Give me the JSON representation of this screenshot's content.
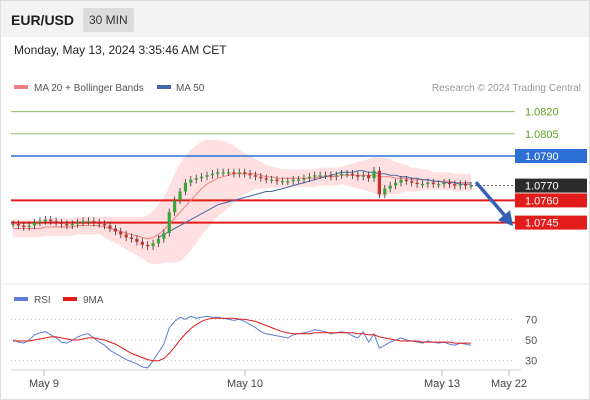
{
  "header": {
    "symbol": "EUR/USD",
    "timeframe": "30 MIN"
  },
  "timestamp": "Monday, May 13, 2024 3:35:46 AM CET",
  "legend": {
    "ma20_bb": "MA 20 + Bollinger Bands",
    "ma50": "MA 50",
    "rsi": "RSI",
    "rsi_ma": "9MA"
  },
  "credit": "Research © 2024 Trading Central",
  "colors": {
    "candle_up": "#3aa63a",
    "candle_down": "#c9302c",
    "bollinger_fill": "#ffd6d6",
    "ma20": "#f08080",
    "ma50": "#4466aa",
    "resistance_green": "#62a121",
    "pivot_blue": "#2b6fd6",
    "support_red": "#e21b1b",
    "current_price_bg": "#2b2b2b",
    "arrow": "#3460b4",
    "rsi_line": "#5b7fd6",
    "rsi_ma_line": "#e21b1b"
  },
  "chart_data": [
    {
      "type": "candlestick",
      "title": "EUR/USD 30 MIN",
      "x_ticks": [
        "May 9",
        "May 10",
        "May 13",
        "May 22"
      ],
      "ylim": [
        1.0715,
        1.084
      ],
      "legend_position": "top-left",
      "levels": [
        {
          "value": 1.082,
          "label": "1.0820",
          "role": "resistance"
        },
        {
          "value": 1.0805,
          "label": "1.0805",
          "role": "resistance"
        },
        {
          "value": 1.079,
          "label": "1.0790",
          "role": "pivot"
        },
        {
          "value": 1.077,
          "label": "1.0770",
          "role": "current"
        },
        {
          "value": 1.076,
          "label": "1.0760",
          "role": "support"
        },
        {
          "value": 1.0745,
          "label": "1.0745",
          "role": "support"
        }
      ],
      "forecast": "bearish arrow toward 1.0745",
      "close": [
        1.0744,
        1.0743,
        1.0742,
        1.0743,
        1.0745,
        1.0746,
        1.0747,
        1.0746,
        1.0745,
        1.0744,
        1.0743,
        1.0744,
        1.0745,
        1.0746,
        1.0746,
        1.0745,
        1.0744,
        1.0743,
        1.0741,
        1.0739,
        1.0737,
        1.0735,
        1.0734,
        1.0732,
        1.073,
        1.0729,
        1.0731,
        1.0734,
        1.0738,
        1.0752,
        1.076,
        1.0766,
        1.0772,
        1.0774,
        1.0775,
        1.0776,
        1.0777,
        1.0778,
        1.0779,
        1.0779,
        1.0779,
        1.0778,
        1.0779,
        1.0778,
        1.0777,
        1.0776,
        1.0775,
        1.0774,
        1.0774,
        1.0773,
        1.0773,
        1.0773,
        1.0774,
        1.0774,
        1.0775,
        1.0776,
        1.0777,
        1.0777,
        1.0777,
        1.0776,
        1.0777,
        1.0778,
        1.0778,
        1.0777,
        1.0776,
        1.0777,
        1.0775,
        1.078,
        1.0764,
        1.0768,
        1.077,
        1.0772,
        1.0774,
        1.0773,
        1.0772,
        1.0771,
        1.0771,
        1.0772,
        1.0771,
        1.0771,
        1.0772,
        1.0771,
        1.077,
        1.0771,
        1.077,
        1.077
      ],
      "ma20": [
        1.0741,
        1.0741,
        1.0741,
        1.0741,
        1.0741,
        1.0741,
        1.0742,
        1.0742,
        1.0742,
        1.0742,
        1.0742,
        1.0742,
        1.0743,
        1.0743,
        1.0743,
        1.0743,
        1.0743,
        1.0742,
        1.0741,
        1.074,
        1.0739,
        1.0738,
        1.0737,
        1.0736,
        1.0735,
        1.0734,
        1.0735,
        1.0737,
        1.074,
        1.0744,
        1.0748,
        1.0752,
        1.0756,
        1.076,
        1.0764,
        1.0768,
        1.0771,
        1.0773,
        1.0775,
        1.0776,
        1.0777,
        1.0778,
        1.0778,
        1.0778,
        1.0778,
        1.0778,
        1.0777,
        1.0776,
        1.0776,
        1.0775,
        1.0775,
        1.0775,
        1.0775,
        1.0775,
        1.0775,
        1.0775,
        1.0775,
        1.0776,
        1.0776,
        1.0776,
        1.0776,
        1.0777,
        1.0777,
        1.0777,
        1.0777,
        1.0777,
        1.0777,
        1.0777,
        1.0776,
        1.0776,
        1.0776,
        1.0775,
        1.0775,
        1.0775,
        1.0774,
        1.0774,
        1.0774,
        1.0774,
        1.0773,
        1.0773,
        1.0773,
        1.0773,
        1.0772,
        1.0772,
        1.0772,
        1.0772
      ],
      "ma50": [
        null,
        null,
        null,
        null,
        null,
        null,
        null,
        null,
        null,
        null,
        null,
        null,
        null,
        null,
        null,
        null,
        null,
        null,
        null,
        null,
        null,
        null,
        null,
        null,
        null,
        null,
        null,
        1.0735,
        1.0737,
        1.0739,
        1.0741,
        1.0743,
        1.0745,
        1.0747,
        1.0749,
        1.0751,
        1.0753,
        1.0755,
        1.0757,
        1.0758,
        1.0759,
        1.076,
        1.0761,
        1.0762,
        1.0763,
        1.0764,
        1.0765,
        1.0766,
        1.0766,
        1.0767,
        1.0768,
        1.0769,
        1.077,
        1.0771,
        1.0772,
        1.0773,
        1.0774,
        1.0775,
        1.0776,
        1.0777,
        1.0778,
        1.0779,
        1.0779,
        1.0779,
        1.078,
        1.078,
        1.0779,
        1.0779,
        1.0778,
        1.0778,
        1.0777,
        1.0777,
        1.0776,
        1.0776,
        1.0775,
        1.0775,
        1.0774,
        1.0774,
        1.0773,
        1.0773,
        1.0772,
        1.0772,
        1.0772,
        1.0771,
        1.0771,
        1.0771
      ],
      "bb_width": [
        0.0006,
        0.0006,
        0.0006,
        0.0006,
        0.0006,
        0.0006,
        0.0006,
        0.0006,
        0.0006,
        0.0006,
        0.0006,
        0.0006,
        0.0006,
        0.0006,
        0.0006,
        0.0006,
        0.0006,
        0.0007,
        0.0008,
        0.0009,
        0.001,
        0.0011,
        0.0012,
        0.0013,
        0.0014,
        0.0016,
        0.0018,
        0.002,
        0.0022,
        0.0026,
        0.003,
        0.0033,
        0.0034,
        0.0034,
        0.0033,
        0.0032,
        0.003,
        0.0028,
        0.0026,
        0.0024,
        0.0022,
        0.0019,
        0.0016,
        0.0014,
        0.0012,
        0.001,
        0.0009,
        0.0008,
        0.0007,
        0.0007,
        0.0006,
        0.0006,
        0.0006,
        0.0006,
        0.0006,
        0.0006,
        0.0006,
        0.0006,
        0.0006,
        0.0006,
        0.0006,
        0.0006,
        0.0007,
        0.0008,
        0.0009,
        0.001,
        0.0011,
        0.0012,
        0.0013,
        0.0013,
        0.0012,
        0.0011,
        0.001,
        0.0009,
        0.0008,
        0.0008,
        0.0007,
        0.0007,
        0.0006,
        0.0006,
        0.0006,
        0.0006,
        0.0006,
        0.0006,
        0.0006,
        0.0006
      ]
    },
    {
      "type": "line",
      "title": "RSI",
      "ylim": [
        20,
        80
      ],
      "y_ticks": [
        70,
        50,
        30
      ],
      "series": [
        {
          "name": "RSI",
          "values": [
            50,
            48,
            47,
            50,
            55,
            57,
            58,
            55,
            52,
            48,
            47,
            50,
            53,
            55,
            56,
            52,
            48,
            45,
            40,
            37,
            34,
            31,
            29,
            27,
            24,
            23,
            30,
            38,
            46,
            62,
            68,
            72,
            70,
            73,
            71,
            72,
            73,
            72,
            72,
            71,
            70,
            69,
            70,
            68,
            65,
            62,
            58,
            56,
            55,
            54,
            53,
            52,
            55,
            56,
            57,
            58,
            60,
            59,
            58,
            56,
            57,
            58,
            57,
            54,
            52,
            58,
            48,
            56,
            42,
            45,
            48,
            50,
            52,
            50,
            49,
            48,
            47,
            49,
            48,
            47,
            48,
            46,
            45,
            47,
            46,
            45
          ]
        },
        {
          "name": "9MA",
          "values": [
            49,
            49,
            49,
            49,
            50,
            51,
            52,
            53,
            53,
            52,
            51,
            50,
            50,
            51,
            52,
            52,
            51,
            50,
            48,
            46,
            43,
            40,
            37,
            35,
            33,
            31,
            30,
            30,
            32,
            37,
            43,
            50,
            56,
            61,
            65,
            68,
            70,
            71,
            71,
            71,
            71,
            71,
            70,
            70,
            69,
            68,
            66,
            64,
            62,
            60,
            58,
            57,
            56,
            56,
            56,
            56,
            57,
            57,
            57,
            57,
            57,
            57,
            57,
            57,
            56,
            56,
            55,
            55,
            53,
            52,
            51,
            50,
            49,
            49,
            49,
            49,
            48,
            48,
            48,
            48,
            48,
            48,
            47,
            47,
            47,
            47
          ]
        }
      ]
    }
  ]
}
